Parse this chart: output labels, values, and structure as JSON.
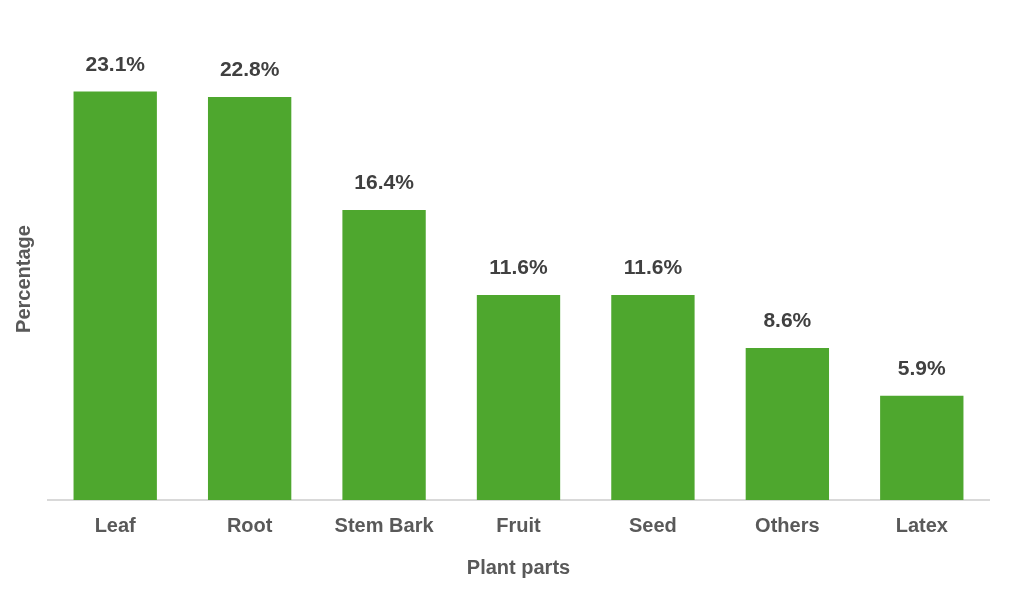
{
  "chart_data": {
    "type": "bar",
    "xlabel": "Plant parts",
    "ylabel": "Percentage",
    "categories": [
      "Leaf",
      "Root",
      "Stem Bark",
      "Fruit",
      "Seed",
      "Others",
      "Latex"
    ],
    "values": [
      23.1,
      22.8,
      16.4,
      11.6,
      11.6,
      8.6,
      5.9
    ],
    "value_labels": [
      "23.1%",
      "22.8%",
      "16.4%",
      "11.6%",
      "11.6%",
      "8.6%",
      "5.9%"
    ],
    "color": "#4ea72e",
    "grid": false,
    "legend": false
  }
}
